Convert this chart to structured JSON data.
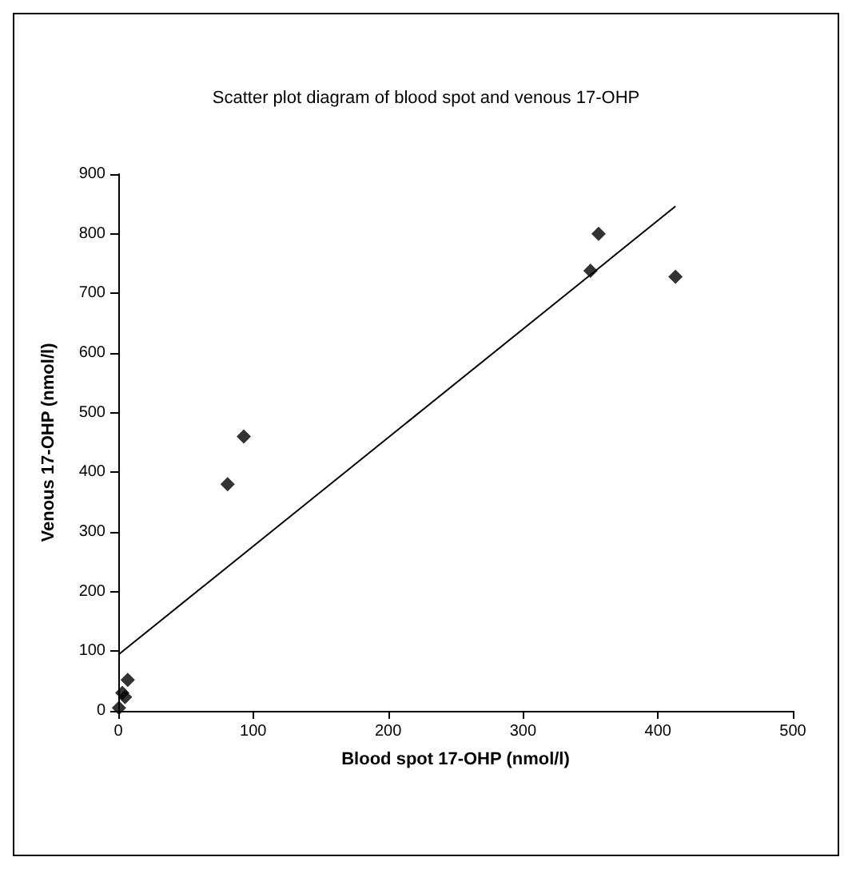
{
  "chart_data": {
    "type": "scatter",
    "title": "Scatter plot diagram of blood spot and venous 17-OHP",
    "xlabel": "Blood spot 17-OHP (nmol/l)",
    "ylabel": "Venous 17-OHP (nmol/l)",
    "series": [
      {
        "type": "scatter",
        "color": "#000000",
        "marker": "diamond",
        "x": [
          0.5,
          3,
          5,
          7,
          81,
          93,
          350,
          356,
          413
        ],
        "values": [
          5,
          30,
          23,
          52,
          380,
          460,
          738,
          800,
          728
        ]
      },
      {
        "type": "line",
        "color": "#000000",
        "marker": "none",
        "x": [
          0,
          413
        ],
        "values": [
          94,
          846
        ]
      }
    ],
    "xlim": [
      0,
      500
    ],
    "xticks": [
      0,
      100,
      200,
      300,
      400,
      500
    ],
    "ylim": [
      0,
      900
    ],
    "yticks": [
      0,
      100,
      200,
      300,
      400,
      500,
      600,
      700,
      800,
      900
    ],
    "grid": false
  }
}
